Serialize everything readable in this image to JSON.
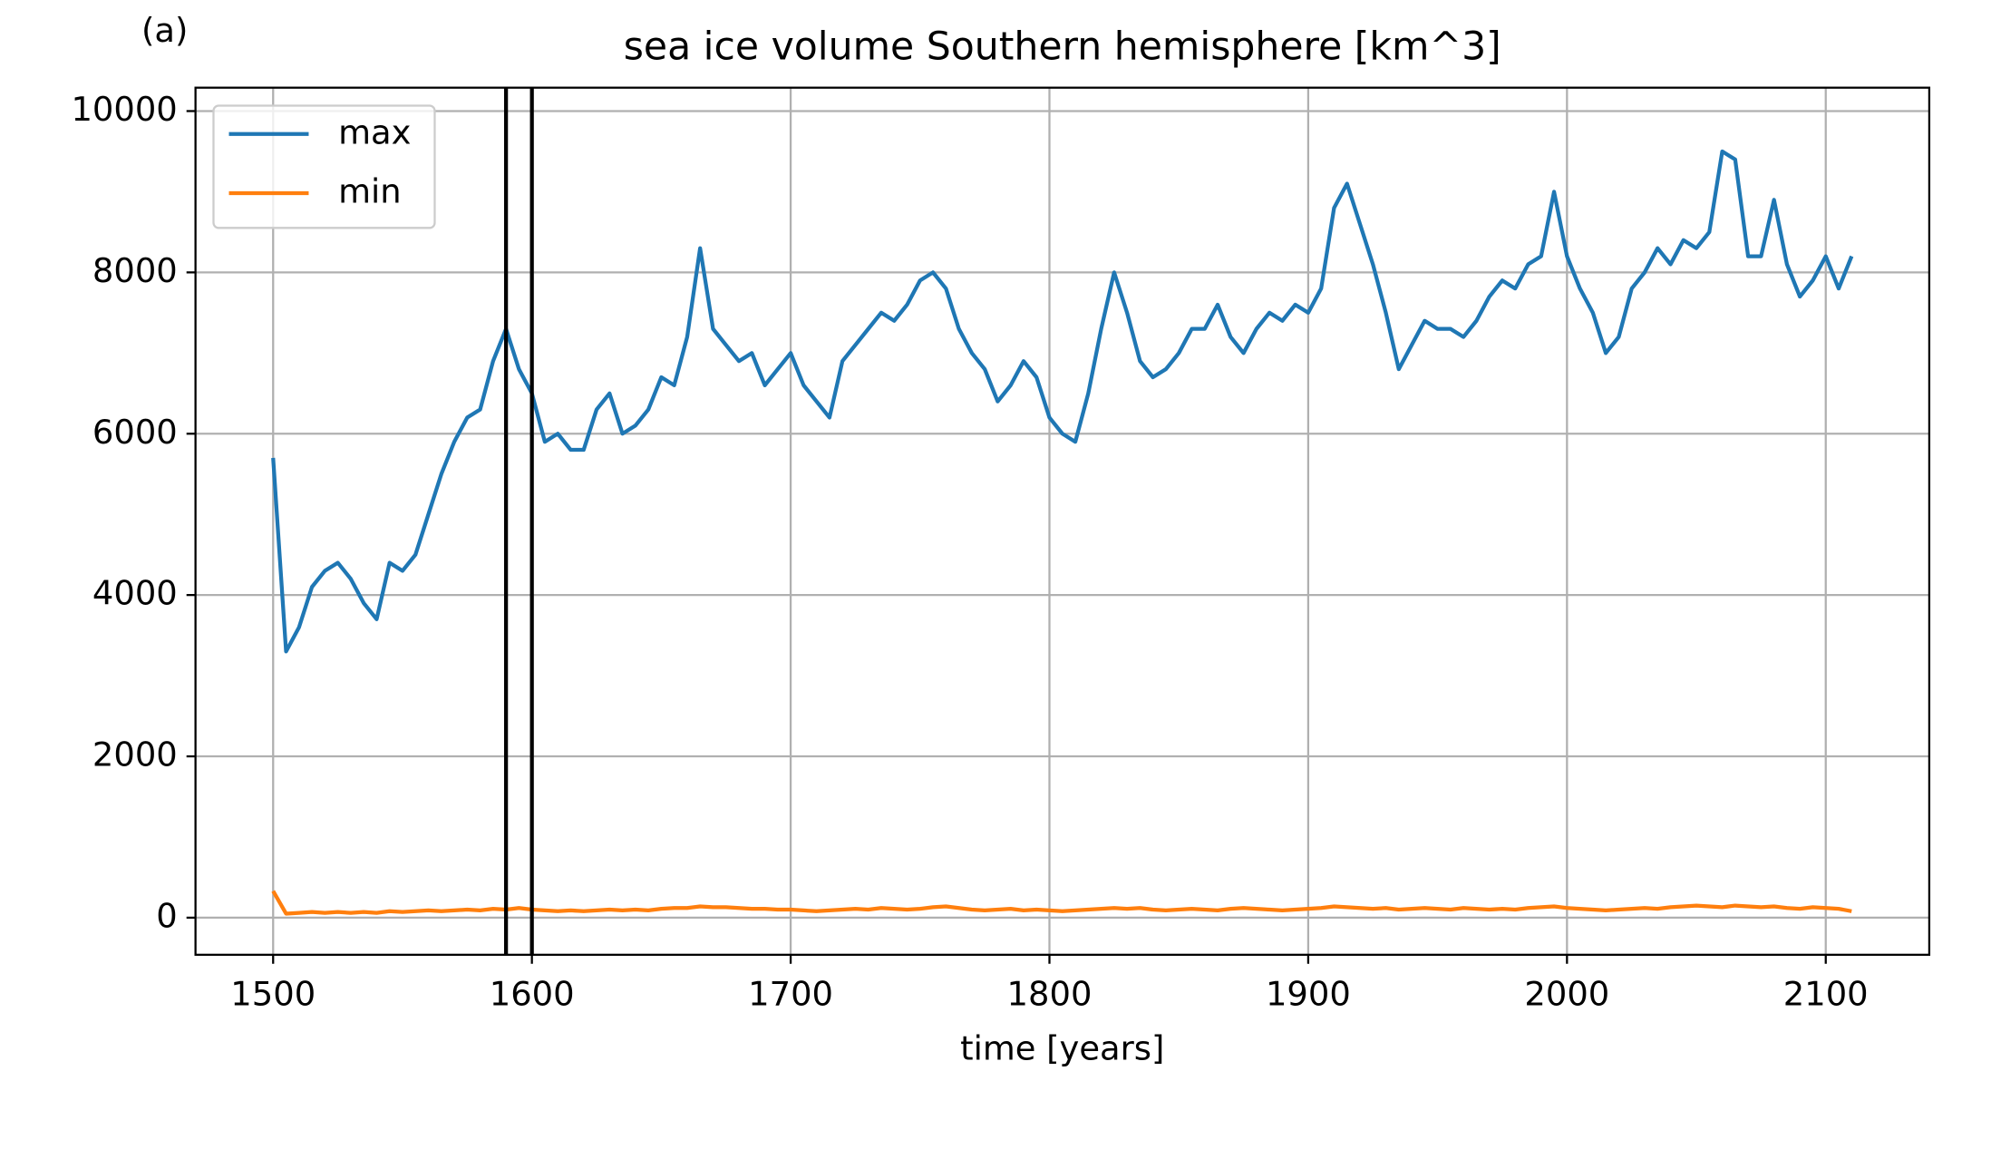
{
  "chart_data": {
    "type": "line",
    "title": "sea ice volume Southern hemisphere [km^3]",
    "panel_label": "(a)",
    "xlabel": "time [years]",
    "x": [
      1500,
      1505,
      1510,
      1515,
      1520,
      1525,
      1530,
      1535,
      1540,
      1545,
      1550,
      1555,
      1560,
      1565,
      1570,
      1575,
      1580,
      1585,
      1590,
      1595,
      1600,
      1605,
      1610,
      1615,
      1620,
      1625,
      1630,
      1635,
      1640,
      1645,
      1650,
      1655,
      1660,
      1665,
      1670,
      1675,
      1680,
      1685,
      1690,
      1695,
      1700,
      1705,
      1710,
      1715,
      1720,
      1725,
      1730,
      1735,
      1740,
      1745,
      1750,
      1755,
      1760,
      1765,
      1770,
      1775,
      1780,
      1785,
      1790,
      1795,
      1800,
      1805,
      1810,
      1815,
      1820,
      1825,
      1830,
      1835,
      1840,
      1845,
      1850,
      1855,
      1860,
      1865,
      1870,
      1875,
      1880,
      1885,
      1890,
      1895,
      1900,
      1905,
      1910,
      1915,
      1920,
      1925,
      1930,
      1935,
      1940,
      1945,
      1950,
      1955,
      1960,
      1965,
      1970,
      1975,
      1980,
      1985,
      1990,
      1995,
      2000,
      2005,
      2010,
      2015,
      2020,
      2025,
      2030,
      2035,
      2040,
      2045,
      2050,
      2055,
      2060,
      2065,
      2070,
      2075,
      2080,
      2085,
      2090,
      2095,
      2100,
      2105,
      2110
    ],
    "series": [
      {
        "name": "max",
        "color": "#1f77b4",
        "values": [
          5700,
          3300,
          3600,
          4100,
          4300,
          4400,
          4200,
          3900,
          3700,
          4400,
          4300,
          4500,
          5000,
          5500,
          5900,
          6200,
          6300,
          6900,
          7300,
          6800,
          6500,
          5900,
          6000,
          5800,
          5800,
          6300,
          6500,
          6000,
          6100,
          6300,
          6700,
          6600,
          7200,
          8300,
          7300,
          7100,
          6900,
          7000,
          6600,
          6800,
          7000,
          6600,
          6400,
          6200,
          6900,
          7100,
          7300,
          7500,
          7400,
          7600,
          7900,
          8000,
          7800,
          7300,
          7000,
          6800,
          6400,
          6600,
          6900,
          6700,
          6200,
          6000,
          5900,
          6500,
          7300,
          8000,
          7500,
          6900,
          6700,
          6800,
          7000,
          7300,
          7300,
          7600,
          7200,
          7000,
          7300,
          7500,
          7400,
          7600,
          7500,
          7800,
          8800,
          9100,
          8600,
          8100,
          7500,
          6800,
          7100,
          7400,
          7300,
          7300,
          7200,
          7400,
          7700,
          7900,
          7800,
          8100,
          8200,
          9000,
          8200,
          7800,
          7500,
          7000,
          7200,
          7800,
          8000,
          8300,
          8100,
          8400,
          8300,
          8500,
          9500,
          9400,
          8200,
          8200,
          8900,
          8100,
          7700,
          7900,
          8200,
          7800,
          8200
        ]
      },
      {
        "name": "min",
        "color": "#ff7f0e",
        "values": [
          330,
          50,
          60,
          70,
          60,
          70,
          60,
          70,
          60,
          80,
          70,
          80,
          90,
          80,
          90,
          100,
          90,
          110,
          100,
          120,
          100,
          90,
          80,
          90,
          80,
          90,
          100,
          90,
          100,
          90,
          110,
          120,
          120,
          140,
          130,
          130,
          120,
          110,
          110,
          100,
          100,
          90,
          80,
          90,
          100,
          110,
          100,
          120,
          110,
          100,
          110,
          130,
          140,
          120,
          100,
          90,
          100,
          110,
          90,
          100,
          90,
          80,
          90,
          100,
          110,
          120,
          110,
          120,
          100,
          90,
          100,
          110,
          100,
          90,
          110,
          120,
          110,
          100,
          90,
          100,
          110,
          120,
          140,
          130,
          120,
          110,
          120,
          100,
          110,
          120,
          110,
          100,
          120,
          110,
          100,
          110,
          100,
          120,
          130,
          140,
          120,
          110,
          100,
          90,
          100,
          110,
          120,
          110,
          130,
          140,
          150,
          140,
          130,
          150,
          140,
          130,
          140,
          120,
          110,
          130,
          120,
          110,
          80
        ]
      }
    ],
    "vlines": [
      1590,
      1600
    ],
    "vline_color": "#000000",
    "xlim": [
      1470,
      2140
    ],
    "xticks": [
      1500,
      1600,
      1700,
      1800,
      1900,
      2000,
      2100
    ],
    "ylim": [
      -460,
      10290
    ],
    "yticks": [
      0,
      2000,
      4000,
      6000,
      8000,
      10000
    ],
    "grid": true,
    "legend": "upper left"
  }
}
